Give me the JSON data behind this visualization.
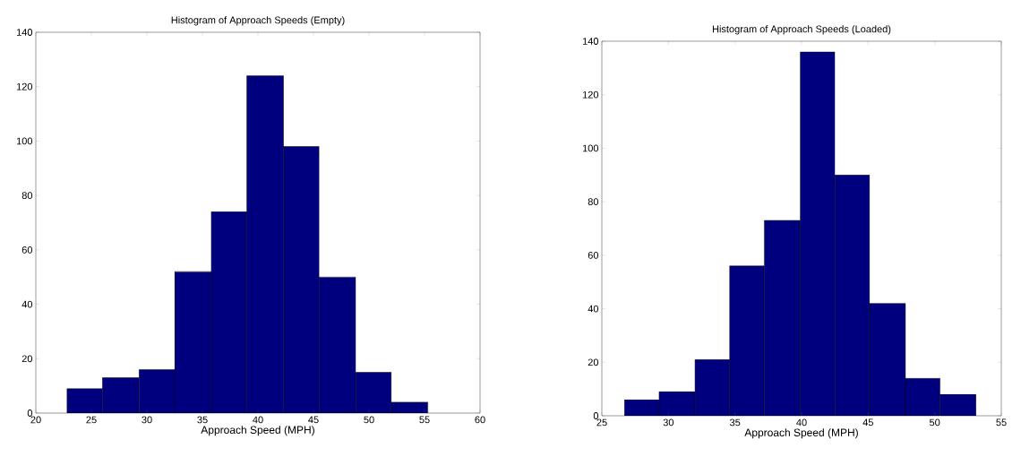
{
  "chart_data": [
    {
      "type": "histogram",
      "title": "Histogram of Approach Speeds (Empty)",
      "xlabel": "Approach Speed (MPH)",
      "color": "#00007f",
      "bins": [
        22.8,
        26.0,
        29.3,
        32.5,
        35.8,
        39.0,
        42.3,
        45.5,
        48.8,
        52.0,
        55.3
      ],
      "values": [
        9,
        13,
        16,
        52,
        74,
        124,
        98,
        50,
        15,
        4
      ],
      "xlim": [
        20,
        60
      ],
      "xticks": [
        20,
        25,
        30,
        35,
        40,
        45,
        50,
        55,
        60
      ],
      "ylim": [
        0,
        140
      ],
      "yticks": [
        0,
        20,
        40,
        60,
        80,
        100,
        120,
        140
      ]
    },
    {
      "type": "histogram",
      "title": "Histogram of Approach Speeds (Loaded)",
      "xlabel": "Approach Speed (MPH)",
      "color": "#00007f",
      "bins": [
        26.7,
        29.3,
        32.0,
        34.6,
        37.2,
        39.9,
        42.5,
        45.1,
        47.8,
        50.4,
        53.1
      ],
      "values": [
        6,
        9,
        21,
        56,
        73,
        136,
        90,
        42,
        14,
        8
      ],
      "xlim": [
        25,
        55
      ],
      "xticks": [
        25,
        30,
        35,
        40,
        45,
        50,
        55
      ],
      "ylim": [
        0,
        140
      ],
      "yticks": [
        0,
        20,
        40,
        60,
        80,
        100,
        120,
        140
      ]
    }
  ]
}
